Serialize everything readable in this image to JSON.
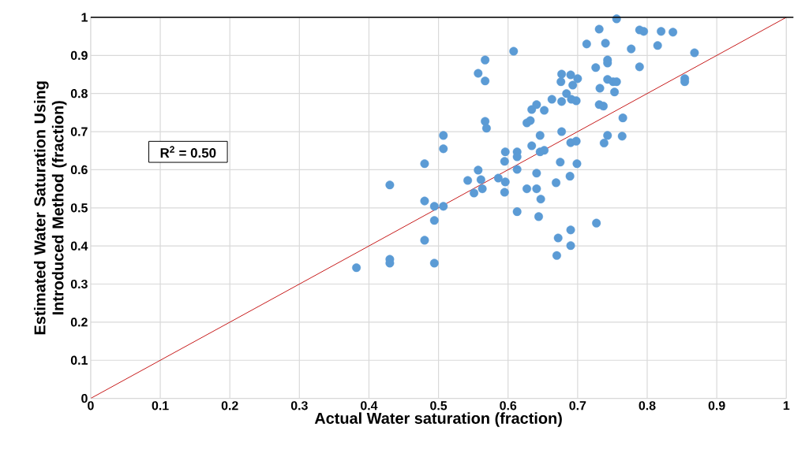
{
  "chart_data": {
    "type": "scatter",
    "xlabel": "Actual Water saturation (fraction)",
    "ylabel": "Estimated Water Saturation Using Introduced Method (fraction)",
    "xlim": [
      0,
      1
    ],
    "ylim": [
      0,
      1
    ],
    "xticks": [
      0,
      0.1,
      0.2,
      0.3,
      0.4,
      0.5,
      0.6,
      0.7,
      0.8,
      0.9,
      1
    ],
    "yticks": [
      0,
      0.1,
      0.2,
      0.3,
      0.4,
      0.5,
      0.6,
      0.7,
      0.8,
      0.9,
      1
    ],
    "grid": true,
    "annotations": [
      "R$^{2}$ = 0.50"
    ],
    "series": [
      {
        "type": "scatter",
        "marker": "circle",
        "color": "#5b9bd5",
        "x": [
          0.382,
          0.43,
          0.43,
          0.43,
          0.48,
          0.48,
          0.48,
          0.494,
          0.494,
          0.494,
          0.507,
          0.507,
          0.507,
          0.542,
          0.551,
          0.557,
          0.557,
          0.567,
          0.567,
          0.567,
          0.569,
          0.561,
          0.563,
          0.586,
          0.595,
          0.596,
          0.596,
          0.595,
          0.613,
          0.613,
          0.613,
          0.613,
          0.608,
          0.627,
          0.627,
          0.632,
          0.634,
          0.634,
          0.641,
          0.641,
          0.641,
          0.646,
          0.646,
          0.652,
          0.647,
          0.644,
          0.652,
          0.663,
          0.677,
          0.676,
          0.677,
          0.684,
          0.677,
          0.675,
          0.669,
          0.672,
          0.67,
          0.69,
          0.693,
          0.691,
          0.698,
          0.7,
          0.69,
          0.698,
          0.699,
          0.689,
          0.69,
          0.69,
          0.727,
          0.713,
          0.731,
          0.74,
          0.726,
          0.732,
          0.731,
          0.737,
          0.738,
          0.743,
          0.743,
          0.743,
          0.743,
          0.751,
          0.756,
          0.753,
          0.756,
          0.765,
          0.764,
          0.777,
          0.789,
          0.795,
          0.789,
          0.815,
          0.82,
          0.837,
          0.854,
          0.854,
          0.868
        ],
        "values": [
          0.343,
          0.56,
          0.365,
          0.355,
          0.616,
          0.518,
          0.415,
          0.504,
          0.467,
          0.355,
          0.69,
          0.655,
          0.504,
          0.572,
          0.539,
          0.599,
          0.853,
          0.888,
          0.833,
          0.727,
          0.709,
          0.574,
          0.55,
          0.578,
          0.622,
          0.647,
          0.568,
          0.541,
          0.647,
          0.634,
          0.601,
          0.49,
          0.911,
          0.723,
          0.55,
          0.729,
          0.758,
          0.663,
          0.771,
          0.591,
          0.55,
          0.69,
          0.647,
          0.651,
          0.523,
          0.477,
          0.756,
          0.785,
          0.779,
          0.831,
          0.851,
          0.8,
          0.7,
          0.62,
          0.566,
          0.421,
          0.375,
          0.849,
          0.822,
          0.785,
          0.781,
          0.839,
          0.671,
          0.675,
          0.616,
          0.583,
          0.442,
          0.401,
          0.46,
          0.93,
          0.969,
          0.932,
          0.868,
          0.814,
          0.771,
          0.767,
          0.67,
          0.69,
          0.88,
          0.888,
          0.837,
          0.831,
          0.831,
          0.804,
          0.996,
          0.736,
          0.688,
          0.917,
          0.967,
          0.963,
          0.87,
          0.926,
          0.963,
          0.961,
          0.839,
          0.831,
          0.907
        ]
      },
      {
        "type": "line",
        "color": "#c00000",
        "x": [
          0,
          1
        ],
        "values": [
          0,
          1
        ]
      }
    ]
  }
}
